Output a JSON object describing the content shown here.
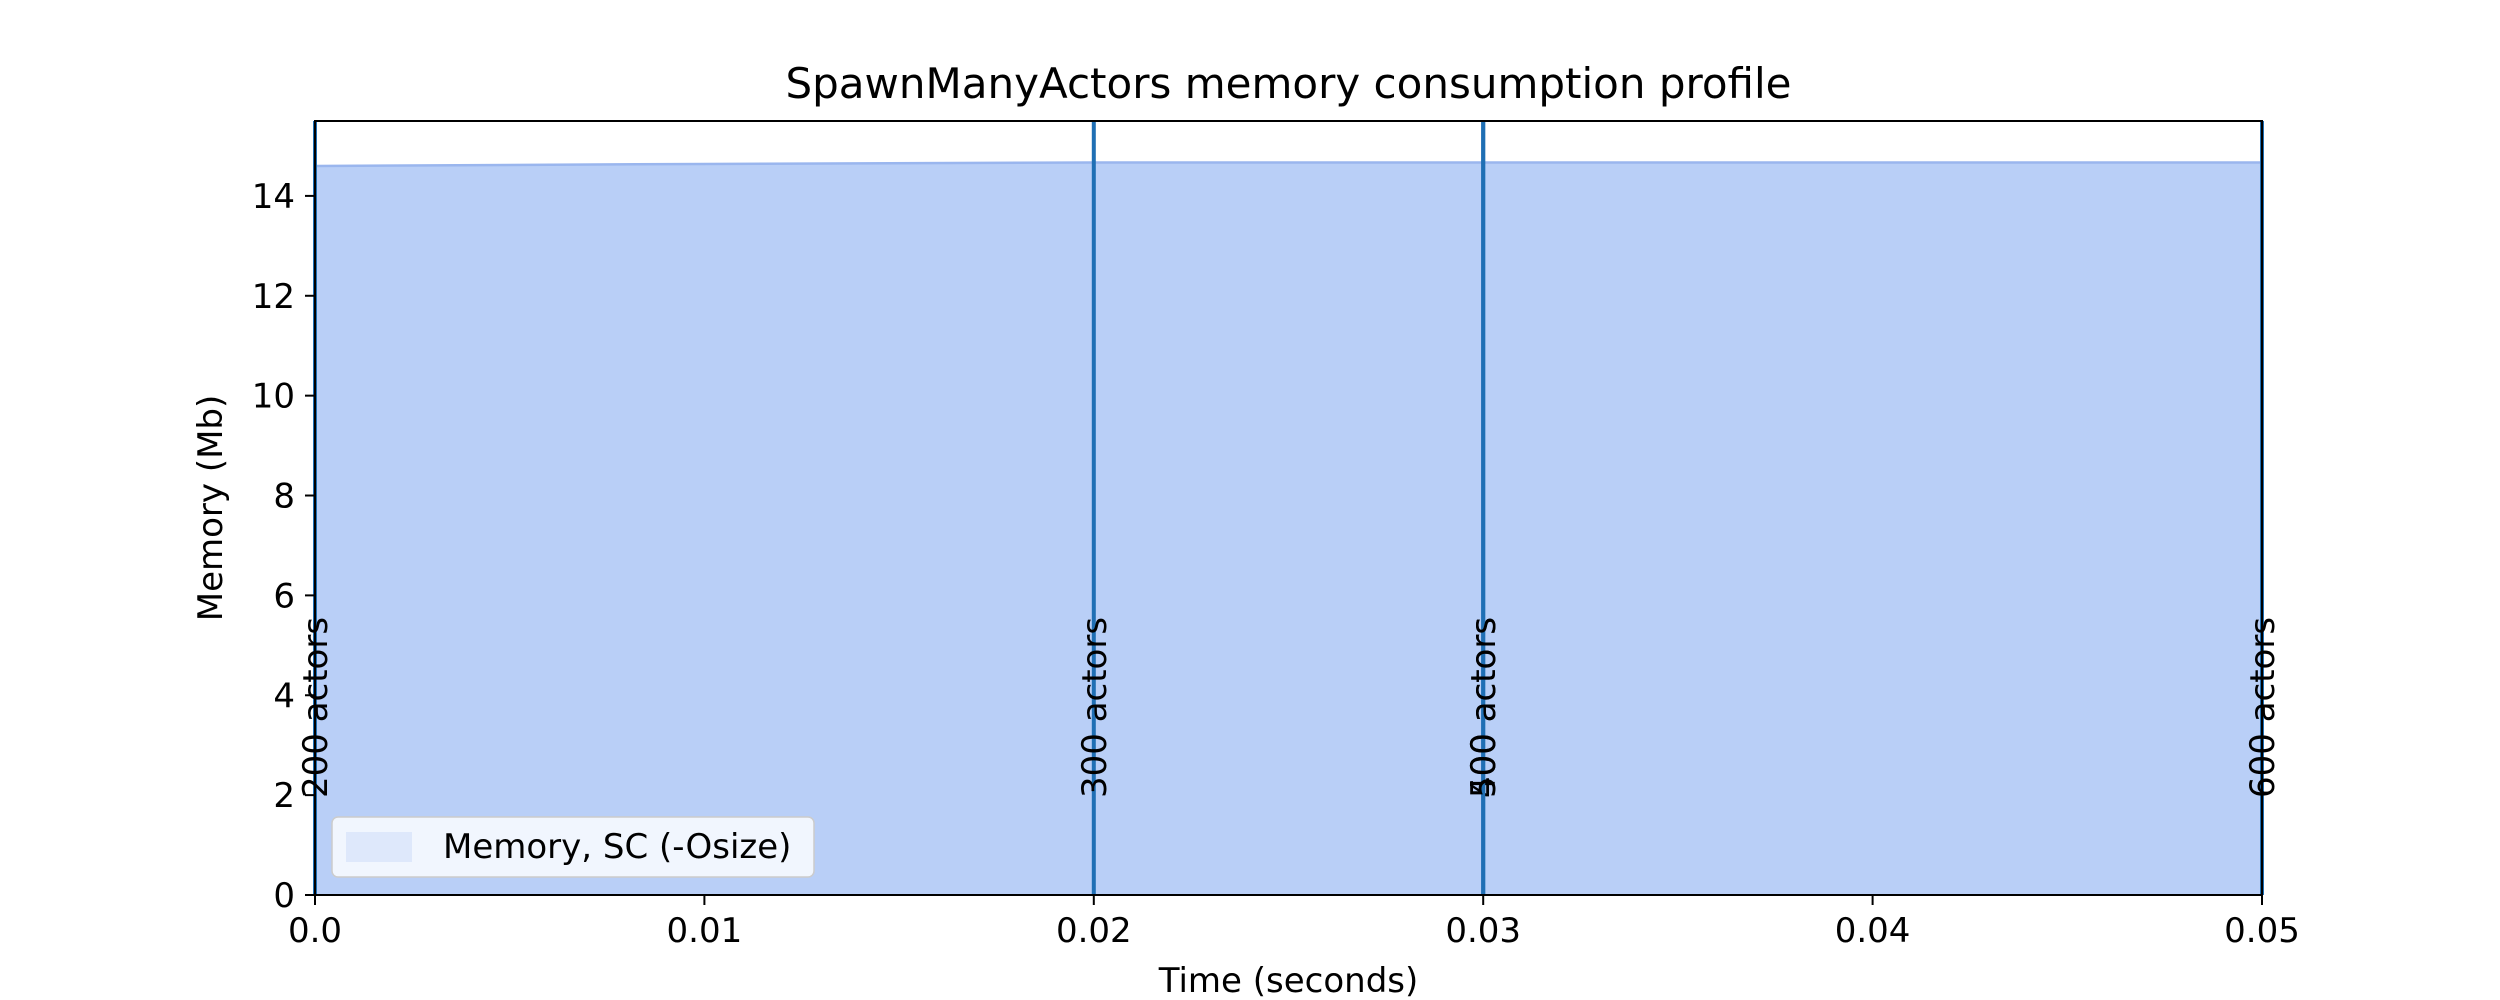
{
  "chart_data": {
    "type": "area",
    "title": "SpawnManyActors memory consumption profile",
    "xlabel": "Time (seconds)",
    "ylabel": "Memory (Mb)",
    "xlim": [
      0.0,
      0.05
    ],
    "ylim": [
      0,
      15.5
    ],
    "x_ticks": [
      "0.0",
      "0.01",
      "0.02",
      "0.03",
      "0.04",
      "0.05"
    ],
    "y_ticks": [
      "0",
      "2",
      "4",
      "6",
      "8",
      "10",
      "12",
      "14"
    ],
    "grid": false,
    "legend_placement": "lower-left",
    "series": [
      {
        "name": "Memory, SC (-Osize)",
        "color": "#b9cff7",
        "edge_color": "#9ab6ee",
        "x": [
          0.0,
          0.01,
          0.02,
          0.03,
          0.04,
          0.05
        ],
        "y": [
          14.6,
          14.64,
          14.67,
          14.67,
          14.67,
          14.67
        ]
      }
    ],
    "markers": [
      {
        "x": 0.0,
        "label": "200 actors"
      },
      {
        "x": 0.02,
        "label": "300 actors"
      },
      {
        "x": 0.03,
        "label": "400 actors"
      },
      {
        "x": 0.03,
        "label": "500 actors"
      },
      {
        "x": 0.05,
        "label": "600 actors"
      }
    ],
    "marker_color": "#1f6fb4"
  }
}
